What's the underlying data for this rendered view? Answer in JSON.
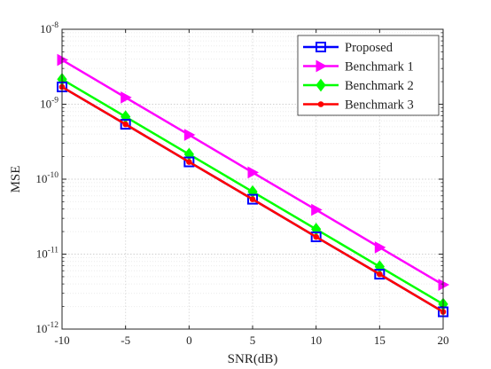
{
  "chart_data": {
    "type": "line",
    "xlabel": "SNR(dB)",
    "ylabel": "MSE",
    "x": [
      -10,
      -5,
      0,
      5,
      10,
      15,
      20
    ],
    "x_ticks": [
      "-10",
      "-5",
      "0",
      "5",
      "10",
      "15",
      "20"
    ],
    "xlim": [
      -10,
      20
    ],
    "y_scale": "log",
    "ylim": [
      1e-12,
      1e-08
    ],
    "y_ticks": [
      {
        "base": "10",
        "exp": "-12"
      },
      {
        "base": "10",
        "exp": "-11"
      },
      {
        "base": "10",
        "exp": "-10"
      },
      {
        "base": "10",
        "exp": "-9"
      },
      {
        "base": "10",
        "exp": "-8"
      }
    ],
    "grid": true,
    "legend_position": "top-right",
    "series": [
      {
        "name": "Proposed",
        "color": "#0000ff",
        "marker": "square",
        "values": [
          1.7e-09,
          5.4e-10,
          1.7e-10,
          5.4e-11,
          1.7e-11,
          5.4e-12,
          1.7e-12
        ]
      },
      {
        "name": "Benchmark 1",
        "color": "#ff00ff",
        "marker": "triangle-right",
        "values": [
          3.9e-09,
          1.23e-09,
          3.9e-10,
          1.23e-10,
          3.9e-11,
          1.23e-11,
          3.9e-12
        ]
      },
      {
        "name": "Benchmark 2",
        "color": "#00ff00",
        "marker": "diamond",
        "values": [
          2.15e-09,
          6.8e-10,
          2.15e-10,
          6.8e-11,
          2.15e-11,
          6.8e-12,
          2.15e-12
        ]
      },
      {
        "name": "Benchmark 3",
        "color": "#ff0000",
        "marker": "circle",
        "values": [
          1.7e-09,
          5.4e-10,
          1.7e-10,
          5.4e-11,
          1.7e-11,
          5.4e-12,
          1.7e-12
        ]
      }
    ]
  }
}
